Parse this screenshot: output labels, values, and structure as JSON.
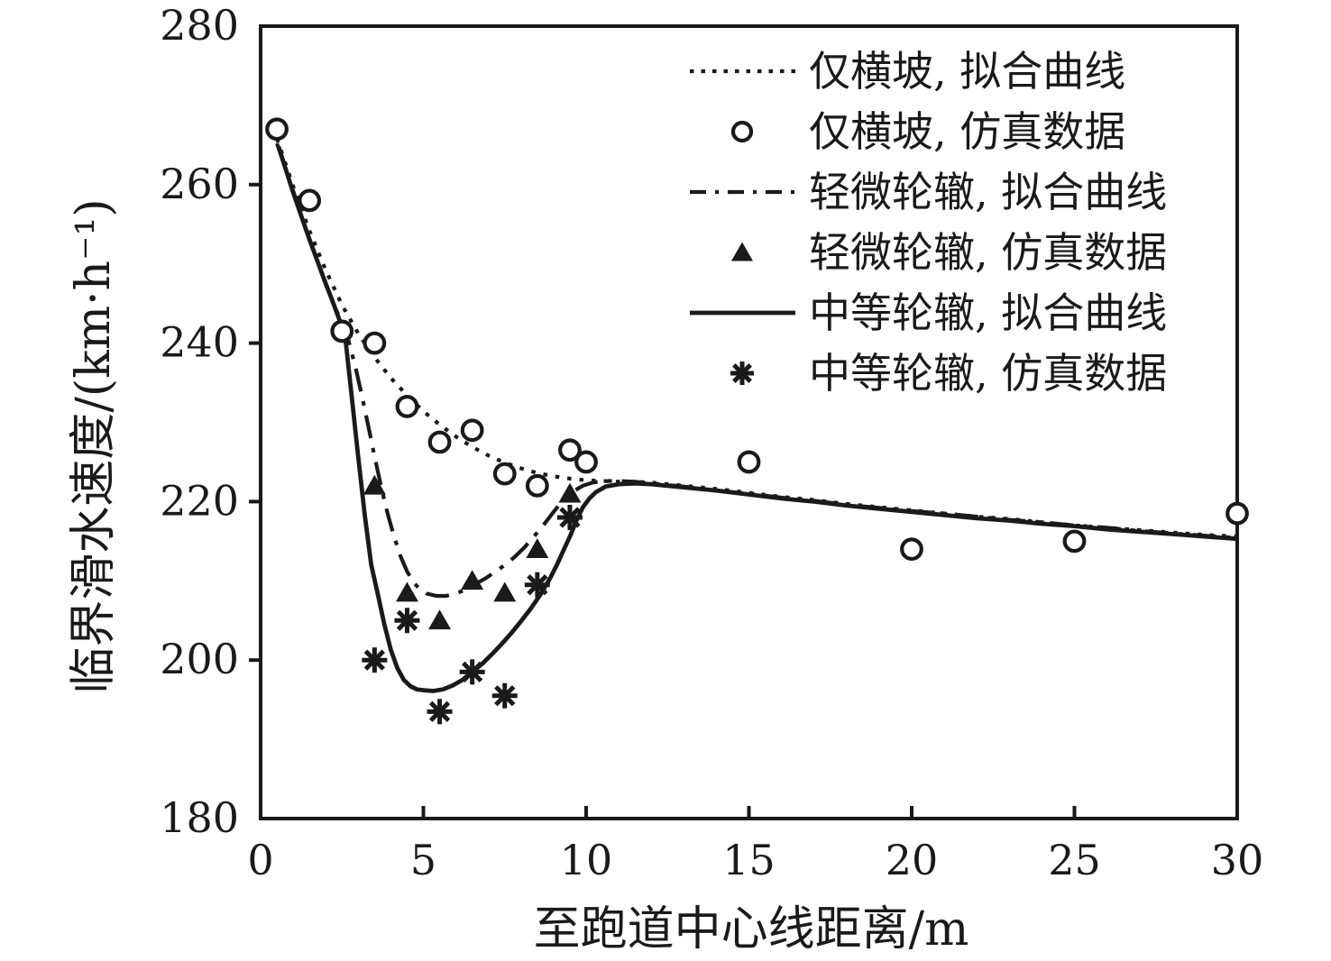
{
  "colors": {
    "ink": "#1a1a1a",
    "background": "#ffffff"
  },
  "chart_data": {
    "type": "line",
    "title": "",
    "xlabel": "至跑道中心线距离/m",
    "ylabel": "临界滑水速度/(km·h⁻¹)",
    "xlim": [
      0,
      30
    ],
    "ylim": [
      180,
      280
    ],
    "xticks": [
      0,
      5,
      10,
      15,
      20,
      25,
      30
    ],
    "yticks": [
      180,
      200,
      220,
      240,
      260,
      280
    ],
    "grid": false,
    "legend_position": "upper right",
    "series": [
      {
        "id": "cross-slope-fit",
        "name": "仅横坡, 拟合曲线",
        "kind": "fit-line",
        "style": "dotted",
        "points": [
          [
            0.5,
            265.8
          ],
          [
            1,
            259.8
          ],
          [
            1.5,
            254.2
          ],
          [
            2,
            249.2
          ],
          [
            2.5,
            244.8
          ],
          [
            3,
            241.2
          ],
          [
            3.5,
            238.2
          ],
          [
            4,
            235.6
          ],
          [
            4.5,
            233.4
          ],
          [
            5,
            231.4
          ],
          [
            5.5,
            229.7
          ],
          [
            6,
            228.2
          ],
          [
            6.5,
            226.9
          ],
          [
            7,
            225.8
          ],
          [
            7.5,
            224.9
          ],
          [
            8,
            224.2
          ],
          [
            8.5,
            223.6
          ],
          [
            9,
            223.2
          ],
          [
            9.5,
            222.9
          ],
          [
            10,
            222.7
          ],
          [
            10.5,
            222.6
          ],
          [
            11,
            222.5
          ],
          [
            11.5,
            222.5
          ],
          [
            12,
            222.4
          ],
          [
            13,
            222
          ],
          [
            14,
            221.6
          ],
          [
            15,
            221.1
          ],
          [
            16,
            220.6
          ],
          [
            17,
            220.2
          ],
          [
            18,
            219.7
          ],
          [
            19,
            219.3
          ],
          [
            20,
            218.9
          ],
          [
            21,
            218.5
          ],
          [
            22,
            218.1
          ],
          [
            23,
            217.8
          ],
          [
            24,
            217.4
          ],
          [
            25,
            217
          ],
          [
            26,
            216.7
          ],
          [
            27,
            216.4
          ],
          [
            28,
            216.1
          ],
          [
            29,
            215.8
          ],
          [
            30,
            215.6
          ]
        ]
      },
      {
        "id": "cross-slope-sim",
        "name": "仅横坡, 仿真数据",
        "kind": "scatter",
        "marker": "circle",
        "points": [
          [
            0.5,
            267
          ],
          [
            1.5,
            258
          ],
          [
            2.5,
            241.5
          ],
          [
            3.5,
            240
          ],
          [
            4.5,
            232
          ],
          [
            5.5,
            227.5
          ],
          [
            6.5,
            229
          ],
          [
            7.5,
            223.5
          ],
          [
            8.5,
            222
          ],
          [
            9.5,
            226.5
          ],
          [
            10,
            225
          ],
          [
            15,
            225
          ],
          [
            20,
            214
          ],
          [
            25,
            215
          ],
          [
            30,
            218.5
          ]
        ]
      },
      {
        "id": "light-rut-fit",
        "name": "轻微轮辙, 拟合曲线",
        "kind": "fit-line",
        "style": "dashdot",
        "points": [
          [
            0.5,
            265.2
          ],
          [
            1,
            259.2
          ],
          [
            1.5,
            253.2
          ],
          [
            2,
            247.6
          ],
          [
            2.3,
            244.3
          ],
          [
            2.5,
            242.8
          ],
          [
            2.7,
            240.3
          ],
          [
            2.9,
            237.2
          ],
          [
            3.1,
            233.6
          ],
          [
            3.3,
            229.7
          ],
          [
            3.5,
            225.7
          ],
          [
            3.7,
            221.9
          ],
          [
            3.9,
            218.5
          ],
          [
            4.1,
            215.6
          ],
          [
            4.3,
            213.1
          ],
          [
            4.5,
            211.2
          ],
          [
            4.7,
            209.8
          ],
          [
            4.9,
            208.9
          ],
          [
            5.1,
            208.4
          ],
          [
            5.4,
            208.1
          ],
          [
            5.7,
            208.1
          ],
          [
            6,
            208.4
          ],
          [
            6.3,
            208.9
          ],
          [
            6.6,
            209.6
          ],
          [
            6.9,
            210.3
          ],
          [
            7.2,
            211.1
          ],
          [
            7.5,
            212
          ],
          [
            7.8,
            213
          ],
          [
            8.1,
            214.2
          ],
          [
            8.4,
            215.6
          ],
          [
            8.7,
            217.1
          ],
          [
            9,
            218.7
          ],
          [
            9.3,
            220.2
          ],
          [
            9.6,
            221.3
          ],
          [
            9.9,
            222
          ],
          [
            10.2,
            222.4
          ],
          [
            10.6,
            222.6
          ],
          [
            11,
            222.6
          ],
          [
            11.5,
            222.5
          ],
          [
            12,
            222.3
          ],
          [
            13,
            221.9
          ],
          [
            14,
            221.4
          ],
          [
            15,
            221
          ],
          [
            16,
            220.5
          ],
          [
            17,
            220.1
          ],
          [
            18,
            219.6
          ],
          [
            19,
            219.2
          ],
          [
            20,
            218.8
          ],
          [
            21,
            218.5
          ],
          [
            22,
            218.1
          ],
          [
            23,
            217.7
          ],
          [
            24,
            217.4
          ],
          [
            25,
            217
          ],
          [
            26,
            216.7
          ],
          [
            27,
            216.3
          ],
          [
            28,
            216
          ],
          [
            29,
            215.7
          ],
          [
            30,
            215.4
          ]
        ]
      },
      {
        "id": "light-rut-sim",
        "name": "轻微轮辙, 仿真数据",
        "kind": "scatter",
        "marker": "triangle",
        "points": [
          [
            3.5,
            222
          ],
          [
            4.5,
            208.5
          ],
          [
            5.5,
            205
          ],
          [
            6.5,
            210
          ],
          [
            7.5,
            208.5
          ],
          [
            8.5,
            214
          ],
          [
            9.5,
            221
          ]
        ]
      },
      {
        "id": "medium-rut-fit",
        "name": "中等轮辙, 拟合曲线",
        "kind": "fit-line",
        "style": "solid",
        "points": [
          [
            0.55,
            264.8
          ],
          [
            1,
            259
          ],
          [
            1.5,
            253.1
          ],
          [
            2,
            247.5
          ],
          [
            2.2,
            245.4
          ],
          [
            2.4,
            243.2
          ],
          [
            2.6,
            240.7
          ],
          [
            2.8,
            233.2
          ],
          [
            3,
            225.6
          ],
          [
            3.2,
            218.3
          ],
          [
            3.4,
            212
          ],
          [
            3.6,
            208.3
          ],
          [
            3.8,
            204.5
          ],
          [
            4,
            201.3
          ],
          [
            4.2,
            199
          ],
          [
            4.4,
            197.5
          ],
          [
            4.6,
            196.7
          ],
          [
            4.8,
            196.3
          ],
          [
            5,
            196.2
          ],
          [
            5.3,
            196.1
          ],
          [
            5.6,
            196.3
          ],
          [
            5.9,
            196.8
          ],
          [
            6.2,
            197.5
          ],
          [
            6.5,
            198.5
          ],
          [
            6.8,
            199.5
          ],
          [
            7.1,
            200.7
          ],
          [
            7.4,
            202
          ],
          [
            7.7,
            203.4
          ],
          [
            8,
            204.9
          ],
          [
            8.3,
            206.5
          ],
          [
            8.6,
            208.3
          ],
          [
            8.9,
            210.4
          ],
          [
            9.1,
            212
          ],
          [
            9.3,
            213.8
          ],
          [
            9.5,
            215.6
          ],
          [
            9.7,
            217.6
          ],
          [
            9.9,
            219.3
          ],
          [
            10.1,
            220.4
          ],
          [
            10.3,
            221.2
          ],
          [
            10.6,
            221.9
          ],
          [
            11,
            222.2
          ],
          [
            11.5,
            222.3
          ],
          [
            12,
            222.2
          ],
          [
            13,
            221.8
          ],
          [
            14,
            221.4
          ],
          [
            15,
            220.9
          ],
          [
            16,
            220.4
          ],
          [
            17,
            220
          ],
          [
            18,
            219.5
          ],
          [
            19,
            219.1
          ],
          [
            20,
            218.7
          ],
          [
            21,
            218.3
          ],
          [
            22,
            217.9
          ],
          [
            23,
            217.6
          ],
          [
            24,
            217.2
          ],
          [
            25,
            216.9
          ],
          [
            26,
            216.5
          ],
          [
            27,
            216.2
          ],
          [
            28,
            215.9
          ],
          [
            29,
            215.6
          ],
          [
            30,
            215.3
          ]
        ]
      },
      {
        "id": "medium-rut-sim",
        "name": "中等轮辙, 仿真数据",
        "kind": "scatter",
        "marker": "asterisk",
        "points": [
          [
            3.5,
            200
          ],
          [
            4.5,
            205
          ],
          [
            5.5,
            193.5
          ],
          [
            6.5,
            198.5
          ],
          [
            7.5,
            195.5
          ],
          [
            8.5,
            209.5
          ],
          [
            9.5,
            218
          ]
        ]
      }
    ]
  }
}
